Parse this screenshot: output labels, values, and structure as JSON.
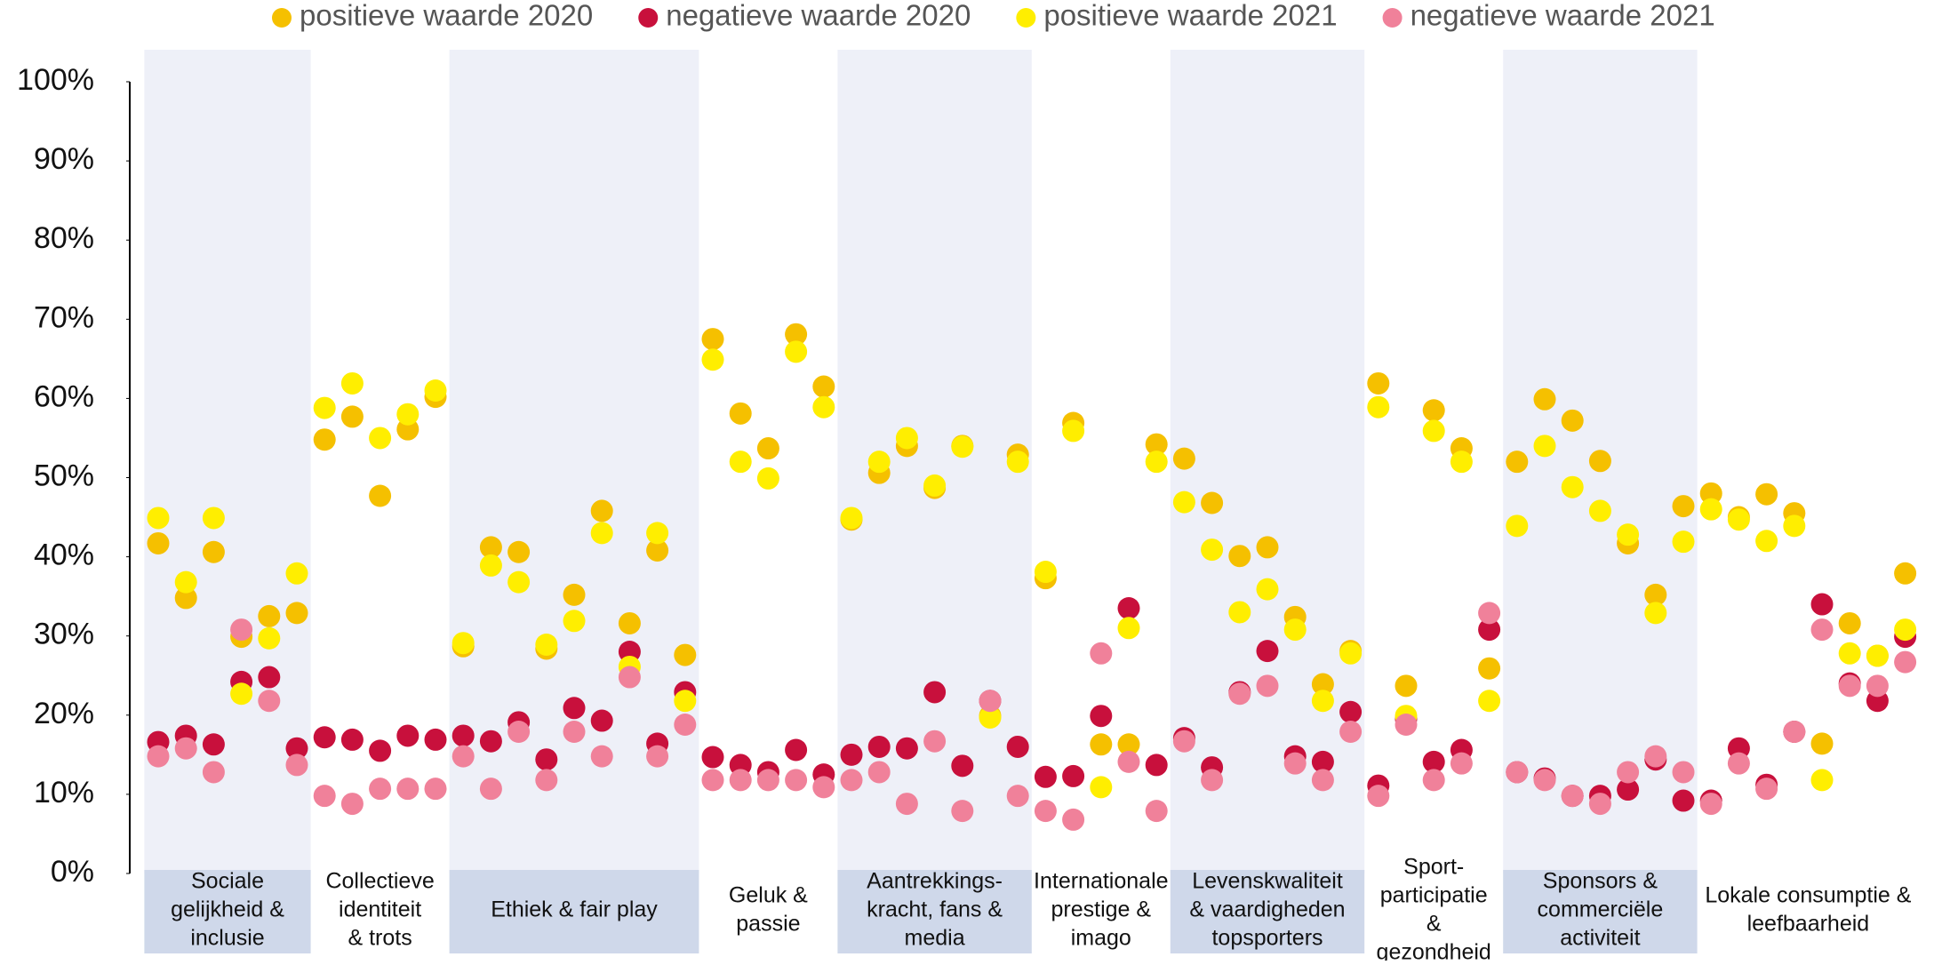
{
  "chart_data": {
    "type": "dot",
    "ylim": [
      0,
      100
    ],
    "yticks": [
      {
        "value": 0,
        "label": "0%"
      },
      {
        "value": 10,
        "label": "10%"
      },
      {
        "value": 20,
        "label": "20%"
      },
      {
        "value": 30,
        "label": "30%"
      },
      {
        "value": 40,
        "label": "40%"
      },
      {
        "value": 50,
        "label": "50%"
      },
      {
        "value": 60,
        "label": "60%"
      },
      {
        "value": 70,
        "label": "70%"
      },
      {
        "value": 80,
        "label": "80%"
      },
      {
        "value": 90,
        "label": "90%"
      },
      {
        "value": 100,
        "label": "100%"
      }
    ],
    "series": [
      {
        "name": "positieve waarde 2020",
        "color": "#f5c000"
      },
      {
        "name": "negatieve waarde 2020",
        "color": "#c8103c"
      },
      {
        "name": "positieve waarde 2021",
        "color": "#ffee00"
      },
      {
        "name": "negatieve waarde 2021",
        "color": "#f0819a"
      }
    ],
    "groups": [
      {
        "label": [
          "Sociale",
          "gelijkheid &",
          "inclusie"
        ],
        "series_values": [
          [
            41.7,
            34.8,
            40.6,
            29.9,
            32.5,
            32.9
          ],
          [
            16.6,
            17.4,
            16.3,
            24.2,
            24.8,
            15.8
          ],
          [
            44.9,
            36.8,
            44.9,
            22.7,
            29.7,
            37.9
          ],
          [
            14.8,
            15.8,
            12.8,
            30.8,
            21.8,
            13.7
          ]
        ]
      },
      {
        "label": [
          "Collectieve",
          "identiteit",
          "& trots"
        ],
        "series_values": [
          [
            54.8,
            57.7,
            47.7,
            56.1,
            60.2
          ],
          [
            17.2,
            16.9,
            15.5,
            17.4,
            16.9
          ],
          [
            58.8,
            61.9,
            55.0,
            58.0,
            61.0
          ],
          [
            9.8,
            8.8,
            10.7,
            10.7,
            10.7
          ]
        ]
      },
      {
        "label": [
          "Ethiek & fair play"
        ],
        "series_values": [
          [
            28.7,
            41.2,
            40.6,
            28.4,
            35.2,
            45.8,
            31.6,
            40.8,
            27.6
          ],
          [
            17.4,
            16.7,
            19.1,
            14.4,
            20.9,
            19.3,
            28.0,
            16.4,
            22.9
          ],
          [
            29.1,
            38.9,
            36.8,
            28.9,
            31.9,
            43.0,
            26.1,
            43.0,
            21.8
          ],
          [
            14.8,
            10.7,
            17.9,
            11.8,
            17.9,
            14.8,
            24.8,
            14.8,
            18.8
          ]
        ]
      },
      {
        "label": [
          "Geluk &",
          "passie"
        ],
        "series_values": [
          [
            67.5,
            58.1,
            53.7,
            68.1,
            61.5
          ],
          [
            14.7,
            13.7,
            12.8,
            15.6,
            12.5
          ],
          [
            64.9,
            52.0,
            49.9,
            65.9,
            58.9
          ],
          [
            11.8,
            11.8,
            11.8,
            11.8,
            10.9
          ]
        ]
      },
      {
        "label": [
          "Aantrekkings-",
          "kracht, fans &",
          "media"
        ],
        "series_values": [
          [
            44.7,
            50.6,
            54.0,
            48.7,
            54.0,
            19.9,
            52.9
          ],
          [
            15.0,
            16.0,
            15.8,
            22.9,
            13.6,
            21.8,
            16.0
          ],
          [
            44.9,
            52.0,
            55.0,
            49.0,
            53.9,
            19.7,
            52.0
          ],
          [
            11.8,
            12.8,
            8.8,
            16.7,
            7.9,
            21.8,
            9.8
          ]
        ]
      },
      {
        "label": [
          "Internationale",
          "prestige &",
          "imago"
        ],
        "series_values": [
          [
            37.3,
            56.9,
            16.3,
            16.3,
            54.2
          ],
          [
            12.2,
            12.3,
            19.9,
            33.5,
            13.7
          ],
          [
            38.1,
            55.9,
            10.9,
            31.0,
            52.0
          ],
          [
            7.9,
            6.8,
            27.8,
            14.1,
            7.9
          ]
        ]
      },
      {
        "label": [
          "Levenskwaliteit",
          "& vaardigheden",
          "topsporters"
        ],
        "series_values": [
          [
            52.4,
            46.8,
            40.1,
            41.2,
            32.4,
            23.9,
            28.1
          ],
          [
            17.1,
            13.4,
            22.9,
            28.1,
            14.8,
            14.1,
            20.4
          ],
          [
            46.9,
            40.9,
            33.0,
            35.9,
            30.8,
            21.8,
            27.8
          ],
          [
            16.7,
            11.8,
            22.7,
            23.7,
            13.9,
            11.8,
            17.9
          ]
        ]
      },
      {
        "label": [
          "Sport-",
          "participatie",
          "&",
          "gezondheid"
        ],
        "series_values": [
          [
            61.9,
            23.7,
            58.5,
            53.7,
            25.9
          ],
          [
            11.1,
            19.5,
            14.1,
            15.6,
            30.8
          ],
          [
            58.9,
            19.9,
            55.9,
            52.0,
            21.8
          ],
          [
            9.8,
            18.8,
            11.8,
            13.9,
            32.9
          ]
        ]
      },
      {
        "label": [
          "Sponsors &",
          "commerciële",
          "activiteit"
        ],
        "series_values": [
          [
            52.0,
            59.9,
            57.2,
            52.1,
            41.7,
            35.2,
            46.4
          ],
          [
            12.8,
            12.0,
            9.8,
            9.8,
            10.6,
            14.4,
            9.2
          ],
          [
            43.9,
            54.0,
            48.8,
            45.8,
            42.8,
            32.9,
            41.9
          ],
          [
            12.8,
            11.8,
            9.8,
            8.8,
            12.8,
            14.8,
            12.8
          ]
        ]
      },
      {
        "label": [
          "Lokale consumptie &",
          "leefbaarheid"
        ],
        "series_values": [
          [
            48.0,
            45.0,
            47.9,
            45.5,
            16.4,
            31.6,
            27.5,
            37.9
          ],
          [
            9.2,
            15.8,
            11.2,
            17.9,
            34.0,
            24.0,
            21.8,
            29.9
          ],
          [
            46.0,
            44.7,
            42.0,
            43.9,
            11.8,
            27.8,
            27.5,
            30.8
          ],
          [
            8.8,
            13.9,
            10.7,
            17.9,
            30.8,
            23.7,
            23.7,
            26.7
          ]
        ]
      }
    ]
  }
}
